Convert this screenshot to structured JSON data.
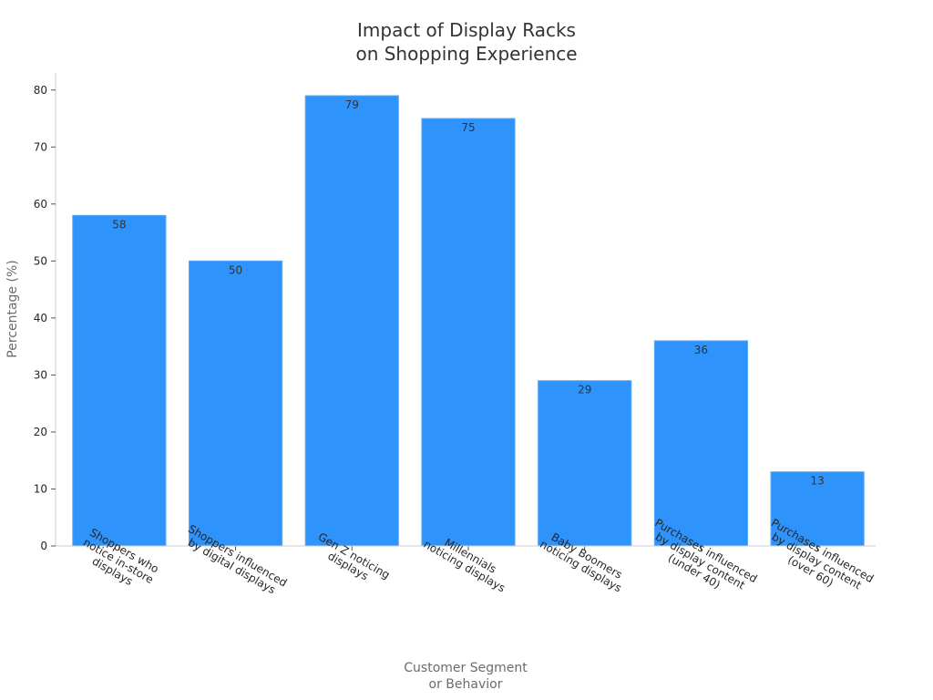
{
  "chart_data": {
    "type": "bar",
    "title": [
      "Impact of Display Racks",
      "on Shopping Experience"
    ],
    "xlabel": [
      "Customer Segment",
      "or Behavior"
    ],
    "ylabel": "Percentage (%)",
    "ylim": [
      0,
      83
    ],
    "yticks": [
      0,
      10,
      20,
      30,
      40,
      50,
      60,
      70,
      80
    ],
    "grid": false,
    "legend": "none",
    "categories": [
      [
        "Shoppers who",
        "notice in-store",
        "displays"
      ],
      [
        "Shoppers influenced",
        "by digital displays"
      ],
      [
        "Gen Z noticing",
        "displays"
      ],
      [
        "Millennials",
        "noticing displays"
      ],
      [
        "Baby Boomers",
        "noticing displays"
      ],
      [
        "Purchases influenced",
        "by display content",
        "(under 40)"
      ],
      [
        "Purchases influenced",
        "by display content",
        "(over 60)"
      ]
    ],
    "values": [
      58,
      50,
      79,
      75,
      29,
      36,
      13
    ],
    "data_labels": [
      "58",
      "50",
      "79",
      "75",
      "29",
      "36",
      "13"
    ],
    "bar_color": "#2e93fa",
    "bar_edge_color": "#5aaaf6"
  }
}
